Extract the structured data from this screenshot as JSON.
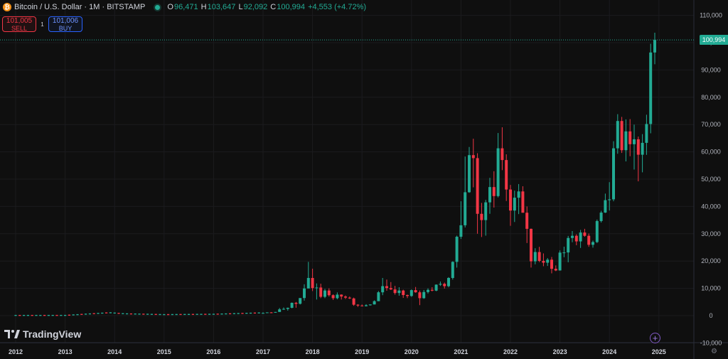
{
  "header": {
    "coin_icon": "bitcoin-icon",
    "symbol_title": "Bitcoin / U.S. Dollar · 1M · BITSTAMP",
    "ohlc": {
      "o_label": "O",
      "o_value": "96,471",
      "h_label": "H",
      "h_value": "103,647",
      "l_label": "L",
      "l_value": "92,092",
      "c_label": "C",
      "c_value": "100,994",
      "change": "+4,553 (+4.72%)"
    }
  },
  "trade": {
    "sell_price": "101,005",
    "sell_label": "SELL",
    "spread": "1",
    "buy_price": "101,006",
    "buy_label": "BUY"
  },
  "logo": {
    "text": "TradingView"
  },
  "last_price": "100,994",
  "colors": {
    "up": "#22ab94",
    "down": "#f23645",
    "background": "#0f0f0f",
    "accent": "#7e57c2"
  },
  "chart_data": {
    "type": "candlestick",
    "timeframe": "1M",
    "y_ticks": [
      "110,000",
      "100,000",
      "90,000",
      "80,000",
      "70,000",
      "60,000",
      "50,000",
      "40,000",
      "30,000",
      "20,000",
      "10,000",
      "0",
      "-10,000"
    ],
    "y_tick_values": [
      110000,
      100000,
      90000,
      80000,
      70000,
      60000,
      50000,
      40000,
      30000,
      20000,
      10000,
      0,
      -10000
    ],
    "x_ticks": [
      "2012",
      "2013",
      "2014",
      "2015",
      "2016",
      "2017",
      "2018",
      "2019",
      "2020",
      "2021",
      "2022",
      "2023",
      "2024",
      "2025"
    ],
    "ylim": [
      -10000,
      110000
    ],
    "last_close": 100994,
    "candles": [
      [
        "2017-01",
        960,
        1190,
        760,
        970
      ],
      [
        "2017-02",
        970,
        1200,
        930,
        1190
      ],
      [
        "2017-03",
        1190,
        1300,
        890,
        1080
      ],
      [
        "2017-04",
        1080,
        1350,
        1060,
        1350
      ],
      [
        "2017-05",
        1350,
        2800,
        1350,
        2300
      ],
      [
        "2017-06",
        2300,
        3000,
        2100,
        2480
      ],
      [
        "2017-07",
        2480,
        2950,
        1830,
        2870
      ],
      [
        "2017-08",
        2870,
        4800,
        2700,
        4700
      ],
      [
        "2017-09",
        4700,
        5000,
        2900,
        4340
      ],
      [
        "2017-10",
        4340,
        6400,
        4100,
        6450
      ],
      [
        "2017-11",
        6450,
        11500,
        5500,
        9950
      ],
      [
        "2017-12",
        9950,
        19700,
        10900,
        13800
      ],
      [
        "2018-01",
        13800,
        17200,
        9000,
        10100
      ],
      [
        "2018-02",
        10100,
        11800,
        5900,
        10300
      ],
      [
        "2018-03",
        10300,
        11700,
        6400,
        6900
      ],
      [
        "2018-04",
        6900,
        9800,
        6400,
        9200
      ],
      [
        "2018-05",
        9200,
        10000,
        7000,
        7500
      ],
      [
        "2018-06",
        7500,
        7800,
        5750,
        6400
      ],
      [
        "2018-07",
        6400,
        8500,
        6000,
        7700
      ],
      [
        "2018-08",
        7700,
        7800,
        5900,
        7000
      ],
      [
        "2018-09",
        7000,
        7400,
        6100,
        6600
      ],
      [
        "2018-10",
        6600,
        7000,
        6100,
        6300
      ],
      [
        "2018-11",
        6300,
        6600,
        3600,
        4000
      ],
      [
        "2018-12",
        4000,
        4200,
        3200,
        3700
      ],
      [
        "2019-01",
        3700,
        4100,
        3400,
        3450
      ],
      [
        "2019-02",
        3450,
        4200,
        3400,
        3800
      ],
      [
        "2019-03",
        3800,
        4100,
        3700,
        4100
      ],
      [
        "2019-04",
        4100,
        5600,
        4100,
        5300
      ],
      [
        "2019-05",
        5300,
        9000,
        5300,
        8550
      ],
      [
        "2019-06",
        8550,
        13800,
        7500,
        10800
      ],
      [
        "2019-07",
        10800,
        13200,
        9100,
        10100
      ],
      [
        "2019-08",
        10100,
        12300,
        9400,
        9600
      ],
      [
        "2019-09",
        9600,
        10900,
        7700,
        8300
      ],
      [
        "2019-10",
        8300,
        10400,
        7300,
        9200
      ],
      [
        "2019-11",
        9200,
        9500,
        6500,
        7550
      ],
      [
        "2019-12",
        7550,
        7700,
        6400,
        7200
      ],
      [
        "2020-01",
        7200,
        9600,
        6900,
        9350
      ],
      [
        "2020-02",
        9350,
        10500,
        8400,
        8550
      ],
      [
        "2020-03",
        8550,
        9200,
        3850,
        6400
      ],
      [
        "2020-04",
        6400,
        9400,
        6150,
        8650
      ],
      [
        "2020-05",
        8650,
        10000,
        8100,
        9450
      ],
      [
        "2020-06",
        9450,
        10400,
        8900,
        9150
      ],
      [
        "2020-07",
        9150,
        11450,
        8950,
        11350
      ],
      [
        "2020-08",
        11350,
        12500,
        10900,
        11650
      ],
      [
        "2020-09",
        11650,
        12100,
        9900,
        10800
      ],
      [
        "2020-10",
        10800,
        14100,
        10400,
        13800
      ],
      [
        "2020-11",
        13800,
        19900,
        13200,
        19700
      ],
      [
        "2020-12",
        19700,
        29300,
        17600,
        28900
      ],
      [
        "2021-01",
        28900,
        41900,
        28100,
        33100
      ],
      [
        "2021-02",
        33100,
        58300,
        32300,
        45200
      ],
      [
        "2021-03",
        45200,
        61800,
        45000,
        58800
      ],
      [
        "2021-04",
        58800,
        64800,
        47000,
        57700
      ],
      [
        "2021-05",
        57700,
        59500,
        30000,
        37300
      ],
      [
        "2021-06",
        37300,
        41300,
        28800,
        35000
      ],
      [
        "2021-07",
        35000,
        42400,
        29300,
        41500
      ],
      [
        "2021-08",
        41500,
        50500,
        37300,
        47100
      ],
      [
        "2021-09",
        47100,
        52900,
        39600,
        43800
      ],
      [
        "2021-10",
        43800,
        66900,
        43300,
        61300
      ],
      [
        "2021-11",
        61300,
        69000,
        53300,
        57000
      ],
      [
        "2021-12",
        57000,
        59100,
        42000,
        46200
      ],
      [
        "2022-01",
        46200,
        47900,
        32900,
        38500
      ],
      [
        "2022-02",
        38500,
        45800,
        34300,
        43200
      ],
      [
        "2022-03",
        43200,
        48200,
        37200,
        45500
      ],
      [
        "2022-04",
        45500,
        47400,
        37700,
        37700
      ],
      [
        "2022-05",
        37700,
        40000,
        26600,
        31800
      ],
      [
        "2022-06",
        31800,
        31900,
        17600,
        19900
      ],
      [
        "2022-07",
        19900,
        24700,
        18800,
        23300
      ],
      [
        "2022-08",
        23300,
        25200,
        19600,
        20050
      ],
      [
        "2022-09",
        20050,
        22800,
        18100,
        19400
      ],
      [
        "2022-10",
        19400,
        21100,
        18200,
        20500
      ],
      [
        "2022-11",
        20500,
        21500,
        15500,
        17150
      ],
      [
        "2022-12",
        17150,
        18400,
        16300,
        16550
      ],
      [
        "2023-01",
        16550,
        23900,
        16500,
        23100
      ],
      [
        "2023-02",
        23100,
        25250,
        21400,
        23150
      ],
      [
        "2023-03",
        23150,
        29200,
        19550,
        28450
      ],
      [
        "2023-04",
        28450,
        31000,
        26900,
        29250
      ],
      [
        "2023-05",
        29250,
        29800,
        25800,
        27200
      ],
      [
        "2023-06",
        27200,
        31400,
        24800,
        30450
      ],
      [
        "2023-07",
        30450,
        31800,
        28900,
        29250
      ],
      [
        "2023-08",
        29250,
        30100,
        25200,
        25950
      ],
      [
        "2023-09",
        25950,
        27500,
        24900,
        26950
      ],
      [
        "2023-10",
        26950,
        35200,
        26600,
        34650
      ],
      [
        "2023-11",
        34650,
        38400,
        34100,
        37750
      ],
      [
        "2023-12",
        37750,
        44700,
        37600,
        42300
      ],
      [
        "2024-01",
        42300,
        48900,
        38500,
        42600
      ],
      [
        "2024-02",
        42600,
        63900,
        41900,
        61300
      ],
      [
        "2024-03",
        61300,
        73800,
        59300,
        71300
      ],
      [
        "2024-04",
        71300,
        72800,
        59600,
        60600
      ],
      [
        "2024-05",
        60600,
        71900,
        56500,
        67500
      ],
      [
        "2024-06",
        67500,
        72000,
        58400,
        62800
      ],
      [
        "2024-07",
        62800,
        70000,
        53500,
        64600
      ],
      [
        "2024-08",
        64600,
        65600,
        49200,
        58950
      ],
      [
        "2024-09",
        58950,
        66500,
        52500,
        63300
      ],
      [
        "2024-10",
        63300,
        73600,
        58900,
        70200
      ],
      [
        "2024-11",
        70200,
        99600,
        66800,
        96400
      ],
      [
        "2024-12",
        96400,
        103647,
        92092,
        100994
      ]
    ]
  }
}
